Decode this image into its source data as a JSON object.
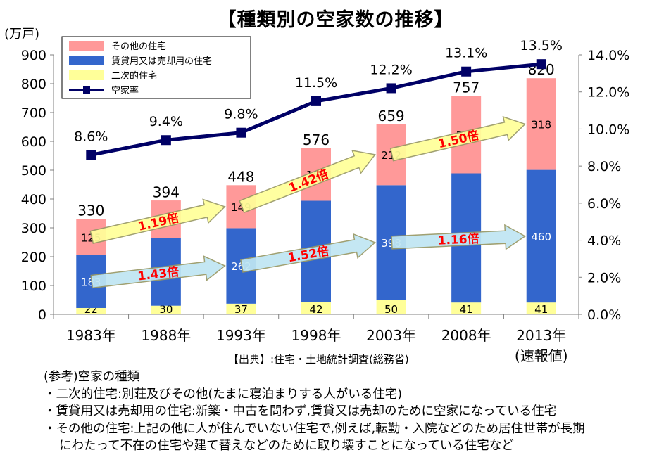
{
  "title": "【種類別の空家数の推移】",
  "source": "【出典】:住宅・土地統計調査(総務省)",
  "notes": {
    "heading": "(参考)空家の種類",
    "items": [
      "・二次的住宅:別荘及びその他(たまに寝泊まりする人がいる住宅)",
      "・賃貸用又は売却用の住宅:新築・中古を問わず,賃貸又は売却のために空家になっている住宅",
      "・その他の住宅:上記の他に人が住んでいない住宅で,例えば,転勤・入院などのため居住世帯が長期",
      "にわたって不在の住宅や建て替えなどのために取り壊すことになっている住宅など"
    ]
  },
  "chart_data": {
    "type": "bar",
    "stacked": true,
    "categories": [
      "1983年",
      "1988年",
      "1993年",
      "1998年",
      "2003年",
      "2008年",
      "2013年"
    ],
    "category_sublabels": [
      "",
      "",
      "",
      "",
      "",
      "",
      "(速報値)"
    ],
    "ylabel": "(万戸)",
    "ylim": [
      0,
      900
    ],
    "yticks": [
      0,
      100,
      200,
      300,
      400,
      500,
      600,
      700,
      800,
      900
    ],
    "y2lim": [
      0,
      14
    ],
    "y2ticks": [
      "0.0%",
      "2.0%",
      "4.0%",
      "6.0%",
      "8.0%",
      "10.0%",
      "12.0%",
      "14.0%"
    ],
    "series": [
      {
        "name": "二次的住宅",
        "color": "#ffff99",
        "values": [
          22,
          30,
          37,
          42,
          50,
          41,
          41
        ]
      },
      {
        "name": "賃貸用又は売却用の住宅",
        "color": "#3366cc",
        "values": [
          183,
          234,
          262,
          352,
          398,
          448,
          460
        ]
      },
      {
        "name": "その他の住宅",
        "color": "#ff9999",
        "values": [
          125,
          131,
          149,
          182,
          212,
          268,
          318
        ]
      }
    ],
    "totals": [
      330,
      394,
      448,
      576,
      659,
      757,
      820
    ],
    "line": {
      "name": "空家率",
      "color": "#000066",
      "axis": "right",
      "values": [
        8.6,
        9.4,
        9.8,
        11.5,
        12.2,
        13.1,
        13.5
      ],
      "labels": [
        "8.6%",
        "9.4%",
        "9.8%",
        "11.5%",
        "12.2%",
        "13.1%",
        "13.5%"
      ]
    },
    "legend": {
      "position": "top-left",
      "entries": [
        "その他の住宅",
        "賃貸用又は売却用の住宅",
        "二次的住宅",
        "空家率"
      ]
    },
    "annotations": [
      {
        "text": "1.43倍",
        "series": "賃貸用又は売却用の住宅",
        "from": "1983年",
        "to": "1993年",
        "color": "#bfe6f2"
      },
      {
        "text": "1.19倍",
        "series": "その他の住宅",
        "from": "1983年",
        "to": "1993年",
        "color": "#ffff99"
      },
      {
        "text": "1.52倍",
        "series": "賃貸用又は売却用の住宅",
        "from": "1993年",
        "to": "2003年",
        "color": "#bfe6f2"
      },
      {
        "text": "1.42倍",
        "series": "その他の住宅",
        "from": "1993年",
        "to": "2003年",
        "color": "#ffff99"
      },
      {
        "text": "1.16倍",
        "series": "賃貸用又は売却用の住宅",
        "from": "2003年",
        "to": "2013年",
        "color": "#bfe6f2"
      },
      {
        "text": "1.50倍",
        "series": "その他の住宅",
        "from": "2003年",
        "to": "2013年",
        "color": "#ffff99"
      }
    ],
    "grid": false
  }
}
